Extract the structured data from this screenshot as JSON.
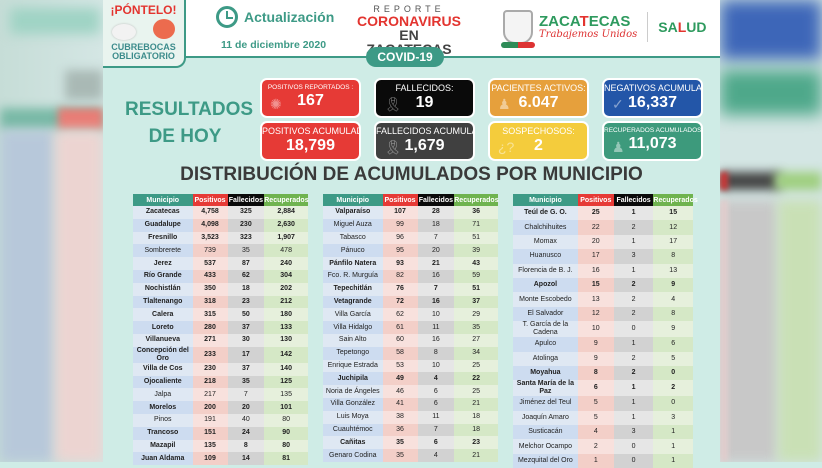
{
  "header": {
    "mask_badge": {
      "title": "¡PÓNTELO!",
      "subtitle_line1": "CUBREBOCAS",
      "subtitle_line2": "OBLIGATORIO"
    },
    "update_label": "Actualización",
    "update_date": "11 de diciembre 2020",
    "report": {
      "line1": "REPORTE",
      "line2": "CORONAVIRUS",
      "line3": "EN ZACATECAS",
      "pill": "COVID-19"
    },
    "government": {
      "name_part1": "ZACA",
      "name_accent": "T",
      "name_part2": "ECAS",
      "slogan": "Trabajemos Unidos",
      "salud_part1": "SA",
      "salud_accent": "L",
      "salud_part2": "UD"
    }
  },
  "results": {
    "title_line1": "RESULTADOS",
    "title_line2": "DE HOY",
    "cards": [
      {
        "label": "POSITIVOS REPORTADOS :",
        "value": "167",
        "color": "#e63a36",
        "icon": "virus-icon"
      },
      {
        "label": "FALLECIDOS:",
        "value": "19",
        "color": "#0a0a0a",
        "icon": "ribbon-icon"
      },
      {
        "label": "PACIENTES ACTIVOS:",
        "value": "6.047",
        "color": "#e6a03c",
        "icon": "person-icon"
      },
      {
        "label": "NEGATIVOS ACUMULADOS:",
        "value": "16,337",
        "color": "#2356a8",
        "icon": "check-icon"
      },
      {
        "label": "POSITIVOS ACUMULADOS:",
        "value": "18,799",
        "color": "#e63a36",
        "icon": "none"
      },
      {
        "label": "FALLECIDOS ACUMULADOS:",
        "value": "1,679",
        "color": "#404040",
        "icon": "ribbon-icon"
      },
      {
        "label": "SOSPECHOSOS:",
        "value": "2",
        "color": "#f4cc3c",
        "icon": "question-icon"
      },
      {
        "label": "RECUPERADOS ACUMULADOS:",
        "value": "11,073",
        "color": "#3d9a7c",
        "icon": "person-icon"
      }
    ]
  },
  "distribution": {
    "title": "DISTRIBUCIÓN DE ACUMULADOS POR MUNICIPIO",
    "columns": [
      "Municipio",
      "Positivos",
      "Fallecidos",
      "Recuperados"
    ],
    "tables": [
      {
        "rows": [
          [
            "Zacatecas",
            "4,758",
            "325",
            "2,884"
          ],
          [
            "Guadalupe",
            "4,098",
            "230",
            "2,630"
          ],
          [
            "Fresnillo",
            "3,523",
            "323",
            "1,907"
          ],
          [
            "Sombrerete",
            "739",
            "35",
            "478"
          ],
          [
            "Jerez",
            "537",
            "87",
            "240"
          ],
          [
            "Río Grande",
            "433",
            "62",
            "304"
          ],
          [
            "Nochistlán",
            "350",
            "18",
            "202"
          ],
          [
            "Tlaltenango",
            "318",
            "23",
            "212"
          ],
          [
            "Calera",
            "315",
            "50",
            "180"
          ],
          [
            "Loreto",
            "280",
            "37",
            "133"
          ],
          [
            "Villanueva",
            "271",
            "30",
            "130"
          ],
          [
            "Concepción del Oro",
            "233",
            "17",
            "142"
          ],
          [
            "Villa de Cos",
            "230",
            "37",
            "140"
          ],
          [
            "Ojocaliente",
            "218",
            "35",
            "125"
          ],
          [
            "Jalpa",
            "217",
            "7",
            "135"
          ],
          [
            "Morelos",
            "200",
            "20",
            "101"
          ],
          [
            "Pinos",
            "191",
            "40",
            "80"
          ],
          [
            "Trancoso",
            "151",
            "24",
            "90"
          ],
          [
            "Mazapil",
            "135",
            "8",
            "80"
          ],
          [
            "Juan Aldama",
            "109",
            "14",
            "81"
          ]
        ]
      },
      {
        "rows": [
          [
            "Valparaíso",
            "107",
            "28",
            "36"
          ],
          [
            "Miguel Auza",
            "99",
            "18",
            "71"
          ],
          [
            "Tabasco",
            "96",
            "7",
            "51"
          ],
          [
            "Pánuco",
            "95",
            "20",
            "39"
          ],
          [
            "Pánfilo Natera",
            "93",
            "21",
            "43"
          ],
          [
            "Fco. R. Murguía",
            "82",
            "16",
            "59"
          ],
          [
            "Tepechitlán",
            "76",
            "7",
            "51"
          ],
          [
            "Vetagrande",
            "72",
            "16",
            "37"
          ],
          [
            "Villa García",
            "62",
            "10",
            "29"
          ],
          [
            "Villa Hidalgo",
            "61",
            "11",
            "35"
          ],
          [
            "Sain Alto",
            "60",
            "16",
            "27"
          ],
          [
            "Tepetongo",
            "58",
            "8",
            "34"
          ],
          [
            "Enrique Estrada",
            "53",
            "10",
            "25"
          ],
          [
            "Juchipila",
            "49",
            "4",
            "22"
          ],
          [
            "Noria de Ángeles",
            "46",
            "6",
            "25"
          ],
          [
            "Villa González",
            "41",
            "6",
            "21"
          ],
          [
            "Luis Moya",
            "38",
            "11",
            "18"
          ],
          [
            "Cuauhtémoc",
            "36",
            "7",
            "18"
          ],
          [
            "Cañitas",
            "35",
            "6",
            "23"
          ],
          [
            "Genaro Codina",
            "35",
            "4",
            "21"
          ]
        ]
      },
      {
        "rows": [
          [
            "Teúl de G. O.",
            "25",
            "1",
            "15"
          ],
          [
            "Chalchihuites",
            "22",
            "2",
            "12"
          ],
          [
            "Momax",
            "20",
            "1",
            "17"
          ],
          [
            "Huanusco",
            "17",
            "3",
            "8"
          ],
          [
            "Florencia de B. J.",
            "16",
            "1",
            "13"
          ],
          [
            "Apozol",
            "15",
            "2",
            "9"
          ],
          [
            "Monte Escobedo",
            "13",
            "2",
            "4"
          ],
          [
            "El Salvador",
            "12",
            "2",
            "8"
          ],
          [
            "T. García de la Cadena",
            "10",
            "0",
            "9"
          ],
          [
            "Apulco",
            "9",
            "1",
            "6"
          ],
          [
            "Atolinga",
            "9",
            "2",
            "5"
          ],
          [
            "Moyahua",
            "8",
            "2",
            "0"
          ],
          [
            "Santa María de la Paz",
            "6",
            "1",
            "2"
          ],
          [
            "Jiménez del Teul",
            "5",
            "1",
            "0"
          ],
          [
            "Joaquín Amaro",
            "5",
            "1",
            "3"
          ],
          [
            "Susticacán",
            "4",
            "3",
            "1"
          ],
          [
            "Melchor Ocampo",
            "2",
            "0",
            "1"
          ],
          [
            "Mezquital del Oro",
            "1",
            "0",
            "1"
          ]
        ]
      }
    ]
  },
  "colors": {
    "teal": "#3d9a86",
    "red": "#e63a36",
    "black": "#0a0a0a",
    "green": "#6fb34f",
    "background": "#cfece6"
  }
}
